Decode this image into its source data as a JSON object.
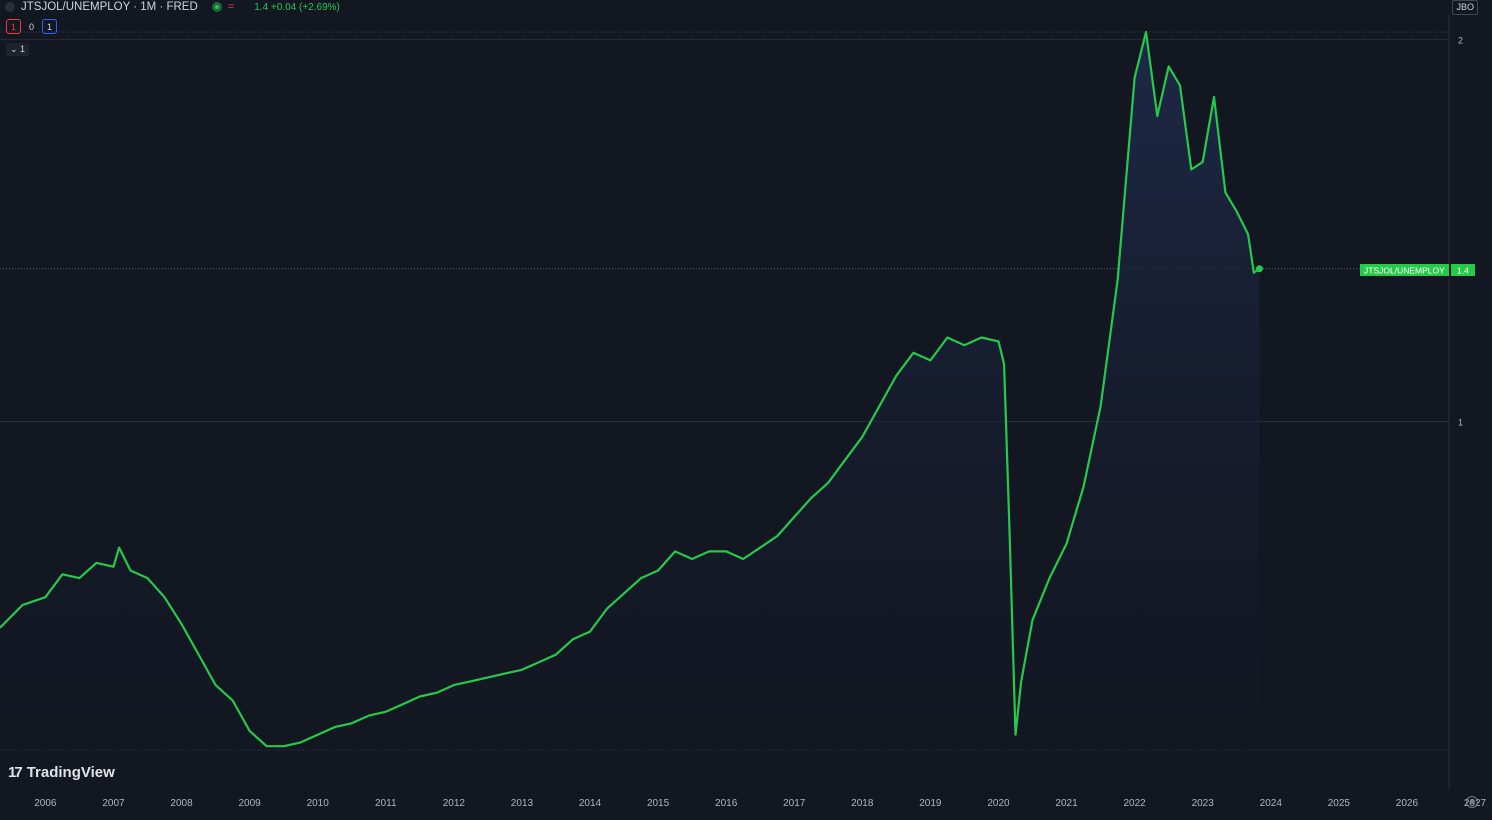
{
  "header": {
    "symbol_title": "JTSJOL/UNEMPLOY · 1M · FRED",
    "eq_icon": "=",
    "price_line": "1.4 +0.04 (+2.69%)"
  },
  "controls": {
    "red_box": "1",
    "zero_label": "0",
    "blue_box": "1",
    "collapse_label": "⌄ 1",
    "scale_button": "JBO"
  },
  "logo": {
    "mark": "17",
    "text": "TradingView"
  },
  "colors": {
    "background": "#131722",
    "line": "#26c94a",
    "fill_top": "#1e2a4a",
    "grid": "#3a3f4b",
    "label_bg": "#26c94a"
  },
  "icons": {
    "settings": "settings-icon",
    "status": "status-dot-icon"
  },
  "chart_data": {
    "type": "area",
    "title": "JTSJOL/UNEMPLOY · 1M · FRED",
    "last_value_label": "JTSJOL/UNEMPLOY",
    "last_value": "1.4",
    "y_ticks": [
      "2",
      "1"
    ],
    "x_ticks": [
      "2006",
      "2007",
      "2008",
      "2009",
      "2010",
      "2011",
      "2012",
      "2013",
      "2014",
      "2015",
      "2016",
      "2017",
      "2018",
      "2019",
      "2020",
      "2021",
      "2022",
      "2023",
      "2024",
      "2025",
      "2026",
      "2027"
    ],
    "xlim": [
      "2005-05",
      "2027-01"
    ],
    "ylim": [
      0.14,
      2.02
    ],
    "series": [
      {
        "x": [
          "2005-05",
          "2005-07",
          "2005-09",
          "2006-01",
          "2006-04",
          "2006-07",
          "2006-10",
          "2007-01",
          "2007-02",
          "2007-04",
          "2007-07",
          "2007-10",
          "2008-01",
          "2008-04",
          "2008-07",
          "2008-10",
          "2009-01",
          "2009-04",
          "2009-07",
          "2009-10",
          "2010-01",
          "2010-04",
          "2010-07",
          "2010-10",
          "2011-01",
          "2011-04",
          "2011-07",
          "2011-10",
          "2012-01",
          "2012-04",
          "2012-07",
          "2012-10",
          "2013-01",
          "2013-04",
          "2013-07",
          "2013-10",
          "2014-01",
          "2014-04",
          "2014-07",
          "2014-10",
          "2015-01",
          "2015-04",
          "2015-07",
          "2015-10",
          "2016-01",
          "2016-04",
          "2016-07",
          "2016-10",
          "2017-01",
          "2017-04",
          "2017-07",
          "2017-10",
          "2018-01",
          "2018-04",
          "2018-07",
          "2018-10",
          "2019-01",
          "2019-04",
          "2019-07",
          "2019-10",
          "2020-01",
          "2020-02",
          "2020-03",
          "2020-04",
          "2020-05",
          "2020-07",
          "2020-10",
          "2021-01",
          "2021-04",
          "2021-07",
          "2021-10",
          "2022-01",
          "2022-03",
          "2022-05",
          "2022-07",
          "2022-09",
          "2022-11",
          "2023-01",
          "2023-03",
          "2023-05",
          "2023-07",
          "2023-09",
          "2023-10",
          "2023-11"
        ],
        "values": [
          0.46,
          0.49,
          0.52,
          0.54,
          0.6,
          0.59,
          0.63,
          0.62,
          0.67,
          0.61,
          0.59,
          0.54,
          0.47,
          0.39,
          0.31,
          0.27,
          0.19,
          0.15,
          0.15,
          0.16,
          0.18,
          0.2,
          0.21,
          0.23,
          0.24,
          0.26,
          0.28,
          0.29,
          0.31,
          0.32,
          0.33,
          0.34,
          0.35,
          0.37,
          0.39,
          0.43,
          0.45,
          0.51,
          0.55,
          0.59,
          0.61,
          0.66,
          0.64,
          0.66,
          0.66,
          0.64,
          0.67,
          0.7,
          0.75,
          0.8,
          0.84,
          0.9,
          0.96,
          1.04,
          1.12,
          1.18,
          1.16,
          1.22,
          1.2,
          1.22,
          1.21,
          1.15,
          0.69,
          0.18,
          0.32,
          0.48,
          0.59,
          0.68,
          0.83,
          1.04,
          1.37,
          1.9,
          2.02,
          1.8,
          1.93,
          1.88,
          1.66,
          1.68,
          1.85,
          1.6,
          1.55,
          1.49,
          1.39,
          1.4
        ]
      }
    ]
  }
}
